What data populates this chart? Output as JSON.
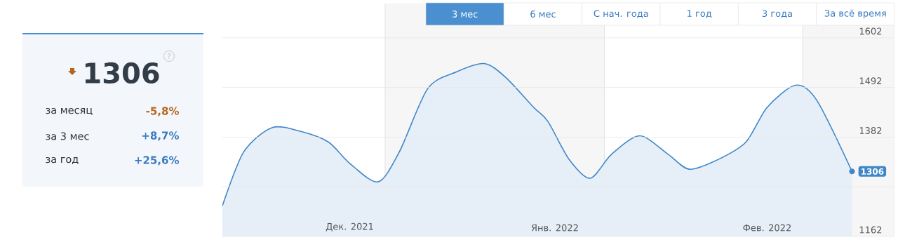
{
  "chart_data": [
    {
      "type": "other",
      "annotations": [
        "1306",
        "?",
        "за месяц",
        "-5,8%",
        "за 3 мес",
        "+8,7%",
        "за год",
        "+25,6%"
      ]
    },
    {
      "type": "area",
      "color": "#3f87c8",
      "x": [
        "2021-12-09",
        "2021-12-12",
        "2021-12-16",
        "2021-12-20",
        "2021-12-24",
        "2021-12-27",
        "2021-12-31",
        "2022-01-03",
        "2022-01-07",
        "2022-01-11",
        "2022-01-15",
        "2022-01-18",
        "2022-01-22",
        "2022-01-24",
        "2022-01-27",
        "2022-01-30",
        "2022-02-02",
        "2022-02-06",
        "2022-02-10",
        "2022-02-13",
        "2022-02-17",
        "2022-02-21",
        "2022-02-24",
        "2022-02-28",
        "2022-03-03",
        "2022-03-08"
      ],
      "values": [
        1230,
        1349,
        1403,
        1395,
        1371,
        1324,
        1283,
        1349,
        1489,
        1526,
        1545,
        1515,
        1448,
        1417,
        1333,
        1291,
        1344,
        1385,
        1344,
        1311,
        1332,
        1371,
        1448,
        1497,
        1464,
        1306
      ],
      "value_labels": [
        null,
        null,
        null,
        null,
        null,
        null,
        null,
        null,
        null,
        null,
        null,
        null,
        null,
        null,
        null,
        null,
        null,
        null,
        null,
        null,
        null,
        null,
        null,
        null,
        null,
        "1306"
      ],
      "xlim": [
        "2021-12-09",
        "2022-03-14"
      ],
      "xticks": [
        {
          "value": "2021-12-27",
          "label": "Дек. 2021"
        },
        {
          "value": "2022-01-25",
          "label": "Янв. 2022"
        },
        {
          "value": "2022-02-24",
          "label": "Фев. 2022"
        }
      ],
      "ylim": [
        1162,
        1678
      ],
      "yticks": [
        1162,
        {
          "value": 1272,
          "label": null
        },
        1382,
        1492,
        1602
      ],
      "grid": "y",
      "bands": [
        {
          "axis": "x",
          "from": "2022-01-01",
          "to": "2022-02-01",
          "color": "#f6f6f6"
        },
        {
          "axis": "x",
          "from": "2022-03-01",
          "to": "2022-03-14",
          "color": "#f6f6f6"
        }
      ],
      "annotations": [
        "3 мес",
        "6 мес",
        "С нач. года",
        "1 год",
        "3 года",
        "За всё время"
      ]
    }
  ]
}
